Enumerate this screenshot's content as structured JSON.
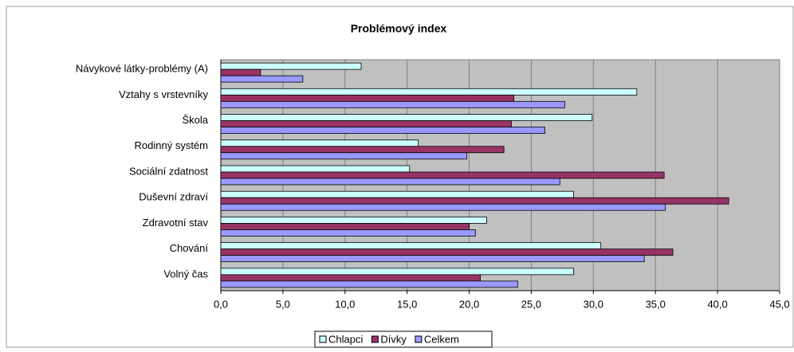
{
  "chart_data": {
    "type": "hbar",
    "title": "Problémový index",
    "categories": [
      "Návykové látky-problémy (A)",
      "Vztahy s vrstevníky",
      "Škola",
      "Rodinný systém",
      "Sociální zdatnost",
      "Duševní zdraví",
      "Zdravotní stav",
      "Chování",
      "Volný čas"
    ],
    "series": [
      {
        "name": "Chlapci",
        "color": "#ccffff",
        "values": [
          11.3,
          33.5,
          29.9,
          15.9,
          15.2,
          28.4,
          21.4,
          30.6,
          28.4
        ]
      },
      {
        "name": "Dívky",
        "color": "#993366",
        "values": [
          3.2,
          23.6,
          23.4,
          22.8,
          35.7,
          40.9,
          20.0,
          36.4,
          20.9
        ]
      },
      {
        "name": "Celkem",
        "color": "#9999ff",
        "values": [
          6.6,
          27.7,
          26.1,
          19.8,
          27.3,
          35.8,
          20.5,
          34.1,
          23.9
        ]
      }
    ],
    "xlim": [
      0,
      45
    ],
    "xticks": [
      {
        "value": 0,
        "label": "0,0"
      },
      {
        "value": 5,
        "label": "5,0"
      },
      {
        "value": 10,
        "label": "10,0"
      },
      {
        "value": 15,
        "label": "15,0"
      },
      {
        "value": 20,
        "label": "20,0"
      },
      {
        "value": 25,
        "label": "25,0"
      },
      {
        "value": 30,
        "label": "30,0"
      },
      {
        "value": 35,
        "label": "35,0"
      },
      {
        "value": 40,
        "label": "40,0"
      },
      {
        "value": 45,
        "label": "45,0"
      }
    ],
    "grid": true,
    "legend": "bottom",
    "plot_background": "#c0c0c0"
  }
}
